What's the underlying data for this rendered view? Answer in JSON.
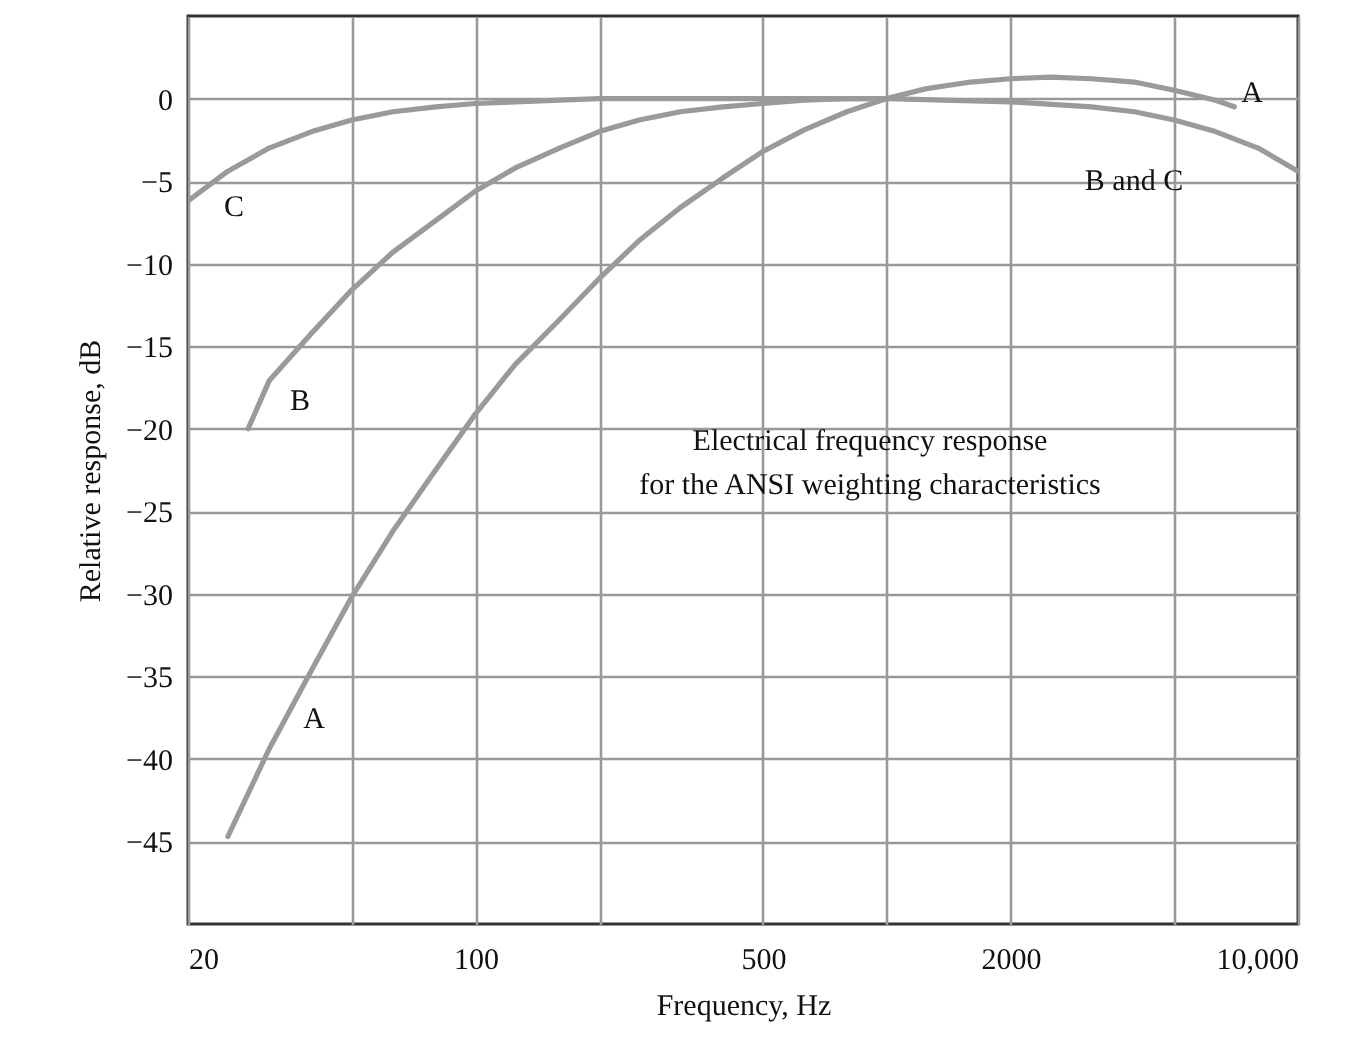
{
  "chart_data": {
    "type": "line",
    "xlabel": "Frequency, Hz",
    "ylabel": "Relative response, dB",
    "log": "x",
    "grid": true,
    "line_style": "solid",
    "marker": "none",
    "xlim": [
      20,
      10000
    ],
    "ylim": [
      -50,
      5
    ],
    "xticks": [
      20,
      {
        "value": 50,
        "label": null
      },
      100,
      {
        "value": 200,
        "label": null
      },
      500,
      {
        "value": 1000,
        "label": null
      },
      2000,
      {
        "value": 5000,
        "label": null
      },
      {
        "value": 10000,
        "label": "10,000"
      }
    ],
    "yticks": [
      0,
      {
        "value": -5,
        "label": "−5"
      },
      {
        "value": -10,
        "label": "−10"
      },
      {
        "value": -15,
        "label": "−15"
      },
      {
        "value": -20,
        "label": "−20"
      },
      {
        "value": -25,
        "label": "−25"
      },
      {
        "value": -30,
        "label": "−30"
      },
      {
        "value": -35,
        "label": "−35"
      },
      {
        "value": -40,
        "label": "−40"
      },
      {
        "value": -45,
        "label": "−45"
      }
    ],
    "series": [
      {
        "color": "#9a9a9a",
        "x": [
          25,
          31.5,
          40,
          50,
          63,
          80,
          100,
          125,
          160,
          200,
          250,
          315,
          400,
          500,
          630,
          800,
          1000,
          1250,
          1600,
          2000,
          2500,
          3150,
          4000,
          5000,
          6300,
          7000
        ],
        "values": [
          -44.7,
          -39.4,
          -34.6,
          -30.2,
          -26.2,
          -22.5,
          -19.1,
          -16.1,
          -13.4,
          -10.9,
          -8.6,
          -6.6,
          -4.8,
          -3.2,
          -1.9,
          -0.8,
          0,
          0.6,
          1.0,
          1.2,
          1.3,
          1.2,
          1.0,
          0.5,
          -0.1,
          -0.5
        ]
      },
      {
        "color": "#9a9a9a",
        "x": [
          28,
          31.5,
          40,
          50,
          63,
          80,
          100,
          125,
          160,
          200,
          250,
          315,
          400,
          500,
          630,
          800,
          1000
        ],
        "values": [
          -20,
          -17.1,
          -14.2,
          -11.6,
          -9.3,
          -7.4,
          -5.6,
          -4.2,
          -3.0,
          -2.0,
          -1.3,
          -0.8,
          -0.5,
          -0.3,
          -0.1,
          0,
          0
        ]
      },
      {
        "color": "#9a9a9a",
        "x": [
          20,
          25,
          31.5,
          40,
          50,
          63,
          80,
          100,
          125,
          160,
          200,
          500,
          1000,
          2000,
          3150,
          4000,
          5000,
          6300,
          8000,
          10000
        ],
        "values": [
          -6.2,
          -4.4,
          -3.0,
          -2.0,
          -1.3,
          -0.8,
          -0.5,
          -0.3,
          -0.2,
          -0.1,
          0,
          0,
          0,
          -0.2,
          -0.5,
          -0.8,
          -1.3,
          -2.0,
          -3.0,
          -4.4
        ]
      }
    ],
    "annotations": [
      "A",
      "A",
      "B",
      "C",
      "B and C",
      "Electrical frequency response\nfor the ANSI weighting characteristics"
    ]
  }
}
